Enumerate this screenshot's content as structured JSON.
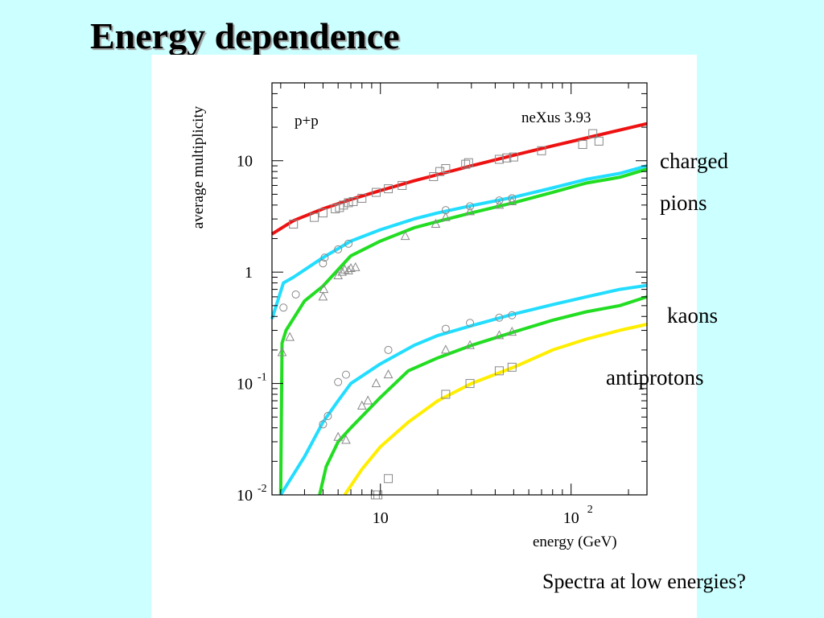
{
  "slide": {
    "title": "Energy dependence",
    "footer": "Spectra at low energies?"
  },
  "labels": {
    "charged": "charged",
    "pions": "pions",
    "kaons": "kaons",
    "antiprotons": "antiprotons"
  },
  "colors": {
    "background": "#ccffff",
    "charged": "#ee1111",
    "pi_plus": "#22ddff",
    "pi_minus": "#22dd22",
    "k_plus": "#22ddff",
    "k_minus": "#22dd22",
    "pbar": "#ffee00",
    "data_markers": "#888888"
  },
  "chart_data": {
    "type": "line",
    "annotation_left": "p+p",
    "annotation_right": "neXus 3.93",
    "ylabel": "average multiplicity",
    "xlabel": "energy (GeV)",
    "x_scale": "log",
    "y_scale": "log",
    "xlim": [
      2.7,
      250
    ],
    "ylim": [
      0.01,
      50
    ],
    "x_ticks": [
      {
        "value": 10,
        "base": "10",
        "exp": ""
      },
      {
        "value": 100,
        "base": "10",
        "exp": "2"
      }
    ],
    "y_ticks": [
      {
        "value": 10,
        "base": "10",
        "exp": ""
      },
      {
        "value": 1,
        "base": "1",
        "exp": ""
      },
      {
        "value": 0.1,
        "base": "10",
        "exp": "-1"
      },
      {
        "value": 0.01,
        "base": "10",
        "exp": "-2"
      }
    ],
    "grid": false,
    "series": [
      {
        "key": "charged",
        "color_key": "charged",
        "marker": "square",
        "x": [
          2.7,
          3.5,
          5,
          7,
          10,
          15,
          20,
          30,
          50,
          80,
          120,
          250
        ],
        "y": [
          2.2,
          2.9,
          3.7,
          4.5,
          5.4,
          6.6,
          7.5,
          9.0,
          11.2,
          13.6,
          16.0,
          21.5
        ],
        "points_x": [
          3.5,
          4.5,
          5,
          5.8,
          6.1,
          6.4,
          6.8,
          7.2,
          8,
          9.5,
          11,
          13,
          19,
          20.5,
          22,
          28,
          29,
          42,
          46,
          50,
          70,
          115,
          130,
          140
        ],
        "points_y": [
          2.7,
          3.1,
          3.4,
          3.7,
          3.8,
          4.0,
          4.2,
          4.3,
          4.6,
          5.2,
          5.6,
          6.0,
          7.2,
          8.0,
          8.5,
          9.3,
          9.6,
          10.3,
          10.6,
          10.8,
          12.3,
          14.0,
          17.5,
          15.0
        ]
      },
      {
        "key": "pi_plus",
        "color_key": "pi_plus",
        "marker": "circle",
        "x": [
          2.7,
          3.1,
          3.5,
          5,
          7,
          10,
          15,
          20,
          30,
          50,
          80,
          120,
          180,
          250
        ],
        "y": [
          0.38,
          0.8,
          0.9,
          1.35,
          1.9,
          2.4,
          3.0,
          3.4,
          3.95,
          4.7,
          5.7,
          6.8,
          7.7,
          9.0
        ],
        "points_x": [
          3.1,
          3.6,
          5,
          5.1,
          6,
          6.8,
          22,
          29.5,
          42,
          49
        ],
        "points_y": [
          0.48,
          0.63,
          1.2,
          1.35,
          1.6,
          1.8,
          3.6,
          3.9,
          4.4,
          4.6
        ]
      },
      {
        "key": "pi_minus",
        "color_key": "pi_minus",
        "marker": "triangle",
        "x": [
          3.0,
          3.05,
          3.2,
          4,
          5,
          7,
          10,
          15,
          20,
          30,
          50,
          80,
          120,
          180,
          250
        ],
        "y": [
          0.01,
          0.23,
          0.3,
          0.55,
          0.75,
          1.4,
          1.9,
          2.5,
          2.85,
          3.4,
          4.2,
          5.2,
          6.3,
          7.1,
          8.4
        ],
        "points_x": [
          3.05,
          3.35,
          5,
          5.05,
          6,
          6.3,
          6.5,
          6.8,
          7.0,
          7.4,
          13.5,
          19.5,
          22,
          29.5,
          42,
          49
        ],
        "points_y": [
          0.19,
          0.26,
          0.6,
          0.7,
          0.93,
          1.0,
          1.05,
          1.03,
          1.08,
          1.1,
          2.1,
          2.7,
          3.1,
          3.5,
          4.0,
          4.3
        ]
      },
      {
        "key": "k_plus",
        "color_key": "k_plus",
        "marker": "circle",
        "x": [
          3.0,
          4,
          5,
          6,
          7,
          10,
          15,
          20,
          30,
          50,
          80,
          120,
          180,
          250
        ],
        "y": [
          0.01,
          0.022,
          0.045,
          0.07,
          0.1,
          0.15,
          0.22,
          0.27,
          0.33,
          0.42,
          0.51,
          0.6,
          0.7,
          0.76
        ],
        "points_x": [
          5,
          5.3,
          6,
          6.6,
          11,
          22,
          29.5,
          42,
          49
        ],
        "points_y": [
          0.043,
          0.051,
          0.103,
          0.12,
          0.2,
          0.31,
          0.35,
          0.39,
          0.41
        ]
      },
      {
        "key": "k_minus",
        "color_key": "k_minus",
        "marker": "triangle",
        "x": [
          4.8,
          5.2,
          6,
          7,
          10,
          14,
          20,
          30,
          50,
          80,
          120,
          180,
          250
        ],
        "y": [
          0.01,
          0.018,
          0.03,
          0.04,
          0.075,
          0.13,
          0.17,
          0.22,
          0.29,
          0.37,
          0.44,
          0.5,
          0.6
        ],
        "points_x": [
          6.0,
          6.6,
          8,
          8.6,
          9.5,
          11,
          22,
          29.5,
          42,
          49
        ],
        "points_y": [
          0.033,
          0.031,
          0.063,
          0.07,
          0.1,
          0.12,
          0.2,
          0.22,
          0.27,
          0.29
        ]
      },
      {
        "key": "pbar",
        "color_key": "pbar",
        "marker": "square",
        "x": [
          6.5,
          8,
          10,
          14,
          20,
          30,
          50,
          80,
          120,
          180,
          250
        ],
        "y": [
          0.01,
          0.017,
          0.027,
          0.045,
          0.07,
          0.1,
          0.14,
          0.2,
          0.25,
          0.3,
          0.34
        ],
        "points_x": [
          9.4,
          9.7,
          11,
          22,
          29.5,
          42,
          49
        ],
        "points_y": [
          0.01,
          0.01,
          0.014,
          0.08,
          0.1,
          0.13,
          0.14
        ]
      }
    ]
  }
}
